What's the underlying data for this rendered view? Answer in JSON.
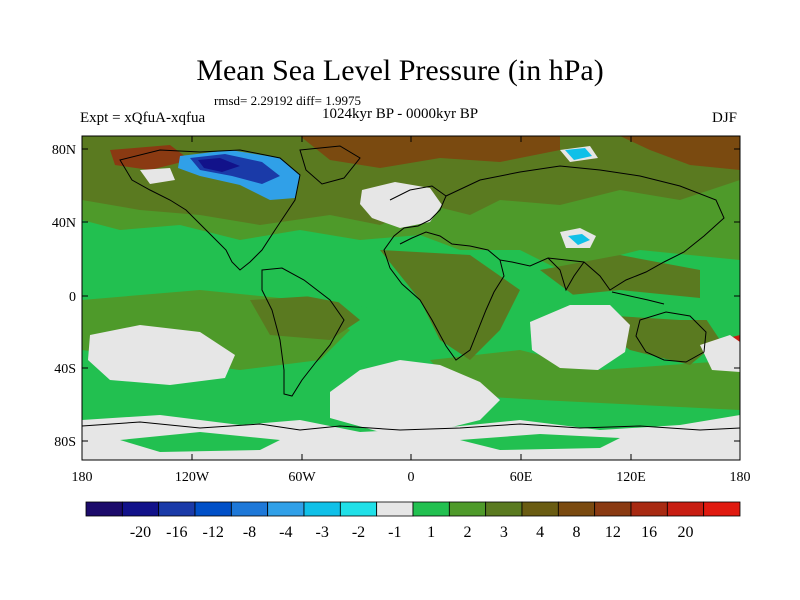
{
  "title": "Mean Sea Level Pressure (in hPa)",
  "stats": "rmsd= 2.29192  diff= 1.9975",
  "left_label": "Expt = xQfuA-xqfua",
  "center_label": "1024kyr BP - 0000kyr BP",
  "right_label": "DJF",
  "lat_labels": [
    "80N",
    "40N",
    "0",
    "40S",
    "80S"
  ],
  "lon_labels": [
    "180",
    "120W",
    "60W",
    "0",
    "60E",
    "120E",
    "180"
  ],
  "colorbar": {
    "colors": [
      "#1c0b6b",
      "#12128a",
      "#1a3aa8",
      "#0050c8",
      "#1e78d8",
      "#30a0e8",
      "#10c0e8",
      "#20e0e8",
      "#e6e6e6",
      "#22c050",
      "#4e9a2a",
      "#5a7a20",
      "#6a5c12",
      "#7a4a10",
      "#8a3a12",
      "#a82a12",
      "#c81e12",
      "#e01a10"
    ],
    "labels": [
      "-20",
      "-16",
      "-12",
      "-8",
      "-4",
      "-3",
      "-2",
      "-1",
      "1",
      "2",
      "3",
      "4",
      "8",
      "12",
      "16",
      "20"
    ]
  },
  "chart_data": {
    "type": "heatmap",
    "title": "Mean Sea Level Pressure (in hPa)",
    "variable": "Mean sea level pressure difference",
    "units": "hPa",
    "experiment": "xQfuA-xqfua",
    "period": "1024kyr BP - 0000kyr BP",
    "season": "DJF",
    "rmsd": 2.29192,
    "diff": 1.9975,
    "x_range": [
      -180,
      180
    ],
    "y_range": [
      -90,
      90
    ],
    "contour_levels": [
      -20,
      -16,
      -12,
      -8,
      -4,
      -3,
      -2,
      -1,
      1,
      2,
      3,
      4,
      8,
      12,
      16,
      20
    ]
  }
}
